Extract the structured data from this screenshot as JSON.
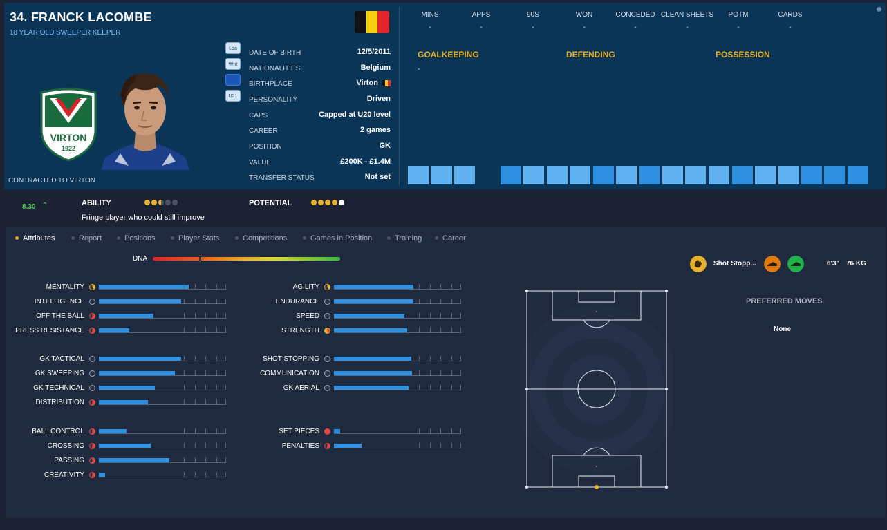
{
  "player": {
    "name": "34. FRANCK LACOMBE",
    "subtitle": "18 YEAR OLD SWEEPER KEEPER",
    "contract": "CONTRACTED TO VIRTON",
    "crest_text": "VIRTON",
    "crest_year": "1922"
  },
  "roles": [
    "Loa",
    "Wnt",
    "",
    "U21"
  ],
  "info": [
    {
      "label": "DATE OF BIRTH",
      "value": "12/5/2011"
    },
    {
      "label": "NATIONALITIES",
      "value": "Belgium"
    },
    {
      "label": "BIRTHPLACE",
      "value": "Virton"
    },
    {
      "label": "PERSONALITY",
      "value": "Driven"
    },
    {
      "label": "CAPS",
      "value": "Capped at U20 level"
    },
    {
      "label": "CAREER",
      "value": "2  games"
    },
    {
      "label": "POSITION",
      "value": "GK"
    },
    {
      "label": "VALUE",
      "value": "£200K - £1.4M"
    },
    {
      "label": "TRANSFER STATUS",
      "value": "Not set"
    }
  ],
  "stats": [
    {
      "label": "MINS",
      "value": "-"
    },
    {
      "label": "APPS",
      "value": "-"
    },
    {
      "label": "90S",
      "value": "-"
    },
    {
      "label": "WON",
      "value": "-"
    },
    {
      "label": "CONCEDED",
      "value": "-"
    },
    {
      "label": "CLEAN SHEETS",
      "value": "-"
    },
    {
      "label": "POTM",
      "value": "-"
    },
    {
      "label": "CARDS",
      "value": "-"
    }
  ],
  "sections": {
    "goalkeeping": "GOALKEEPING",
    "defending": "DEFENDING",
    "possession": "POSSESSION",
    "goalkeeping_value": "-"
  },
  "performance_bars": [
    {
      "color": "#5fb2ef"
    },
    {
      "color": "#5fb2ef"
    },
    {
      "color": "#5fb2ef"
    },
    {
      "color": "#0b3556"
    },
    {
      "color": "#2f8fe0"
    },
    {
      "color": "#5fb2ef"
    },
    {
      "color": "#5fb2ef"
    },
    {
      "color": "#5fb2ef"
    },
    {
      "color": "#2f8fe0"
    },
    {
      "color": "#5fb2ef"
    },
    {
      "color": "#2f8fe0"
    },
    {
      "color": "#5fb2ef"
    },
    {
      "color": "#5fb2ef"
    },
    {
      "color": "#5fb2ef"
    },
    {
      "color": "#2f8fe0"
    },
    {
      "color": "#5fb2ef"
    },
    {
      "color": "#5fb2ef"
    },
    {
      "color": "#2f8fe0"
    },
    {
      "color": "#2f8fe0"
    },
    {
      "color": "#2f8fe0"
    }
  ],
  "ability": {
    "rating": "8.30",
    "rating_trend": "up",
    "ability_label": "ABILITY",
    "potential_label": "POTENTIAL",
    "description": "Fringe player who could still improve",
    "ability_stars": 2.5,
    "potential_stars": 5
  },
  "tabs": [
    "Attributes",
    "Report",
    "Positions",
    "Player Stats",
    "Competitions",
    "Games in Position",
    "Training",
    "Career"
  ],
  "active_tab": "Attributes",
  "dna": {
    "label": "DNA",
    "level": 0.25
  },
  "attributes": {
    "left": [
      [
        {
          "name": "MENTALITY",
          "value": 0.71,
          "icon": "c-yellow"
        },
        {
          "name": "INTELLIGENCE",
          "value": 0.65,
          "icon": ""
        },
        {
          "name": "OFF THE BALL",
          "value": 0.43,
          "icon": "c-red"
        },
        {
          "name": "PRESS RESISTANCE",
          "value": 0.24,
          "icon": "c-red"
        }
      ],
      [
        {
          "name": "GK TACTICAL",
          "value": 0.65,
          "icon": ""
        },
        {
          "name": "GK SWEEPING",
          "value": 0.6,
          "icon": ""
        },
        {
          "name": "GK TECHNICAL",
          "value": 0.44,
          "icon": ""
        },
        {
          "name": "DISTRIBUTION",
          "value": 0.39,
          "icon": "c-red"
        }
      ],
      [
        {
          "name": "BALL CONTROL",
          "value": 0.22,
          "icon": "c-red"
        },
        {
          "name": "CROSSING",
          "value": 0.41,
          "icon": "c-red"
        },
        {
          "name": "PASSING",
          "value": 0.56,
          "icon": "c-red"
        },
        {
          "name": "CREATIVITY",
          "value": 0.05,
          "icon": "c-red"
        }
      ]
    ],
    "right": [
      [
        {
          "name": "AGILITY",
          "value": 0.63,
          "icon": "c-yellow"
        },
        {
          "name": "ENDURANCE",
          "value": 0.63,
          "icon": ""
        },
        {
          "name": "SPEED",
          "value": 0.56,
          "icon": ""
        },
        {
          "name": "STRENGTH",
          "value": 0.58,
          "icon": "c-mix"
        }
      ],
      [
        {
          "name": "SHOT STOPPING",
          "value": 0.61,
          "icon": ""
        },
        {
          "name": "COMMUNICATION",
          "value": 0.62,
          "icon": ""
        },
        {
          "name": "GK AERIAL",
          "value": 0.59,
          "icon": ""
        }
      ],
      [
        {
          "name": "SET PIECES",
          "value": 0.05,
          "icon": "c-fullred"
        },
        {
          "name": "PENALTIES",
          "value": 0.22,
          "icon": "c-red"
        }
      ]
    ]
  },
  "traits": {
    "text": "Shot Stopp...",
    "icons": [
      "glove-icon",
      "boot-icon",
      "boot-icon"
    ],
    "colors": [
      "#e6b22d",
      "#e07a10",
      "#22b04a"
    ],
    "height": "6'3\"",
    "weight": "76 KG"
  },
  "preferred_moves": {
    "title": "PREFERRED MOVES",
    "value": "None"
  },
  "colors": {
    "accent": "#e6b22d",
    "bar": "#2f8fe0",
    "header_bg": "#0b3556",
    "flag": [
      "#111111",
      "#f5cf10",
      "#e4252c"
    ]
  }
}
